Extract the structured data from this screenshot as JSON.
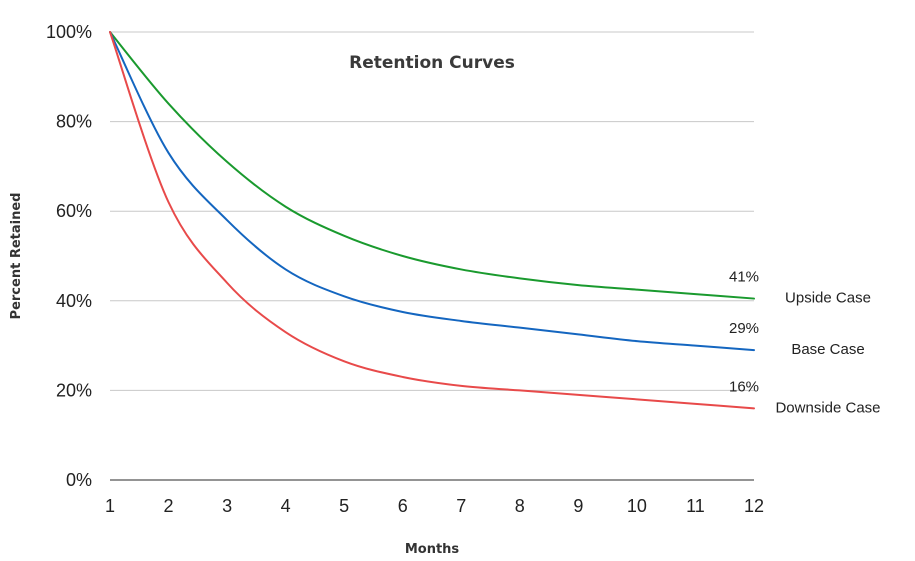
{
  "chart_data": {
    "type": "line",
    "title": "Retention Curves",
    "xlabel": "Months",
    "ylabel": "Percent Retained",
    "x": [
      1,
      2,
      3,
      4,
      5,
      6,
      7,
      8,
      9,
      10,
      11,
      12
    ],
    "x_ticks": [
      "1",
      "2",
      "3",
      "4",
      "5",
      "6",
      "7",
      "8",
      "9",
      "10",
      "11",
      "12"
    ],
    "y_ticks": [
      0,
      20,
      40,
      60,
      80,
      100
    ],
    "y_tick_labels": [
      "0%",
      "20%",
      "40%",
      "60%",
      "80%",
      "100%"
    ],
    "ylim": [
      0,
      100
    ],
    "xlim": [
      1,
      12
    ],
    "grid": true,
    "legend": "right-end labels",
    "series": [
      {
        "name": "Upside Case",
        "color": "#1a9a2e",
        "values": [
          100,
          84,
          71,
          61,
          54.5,
          50,
          47,
          45,
          43.5,
          42.5,
          41.5,
          40.5
        ],
        "end_label": "41%"
      },
      {
        "name": "Base Case",
        "color": "#1466c0",
        "values": [
          100,
          73,
          58,
          47,
          41,
          37.5,
          35.5,
          34,
          32.5,
          31,
          30,
          29
        ],
        "end_label": "29%"
      },
      {
        "name": "Downside Case",
        "color": "#e84a4a",
        "values": [
          100,
          62,
          44,
          33,
          26.5,
          23,
          21,
          20,
          19,
          18,
          17,
          16
        ],
        "end_label": "16%"
      }
    ]
  }
}
